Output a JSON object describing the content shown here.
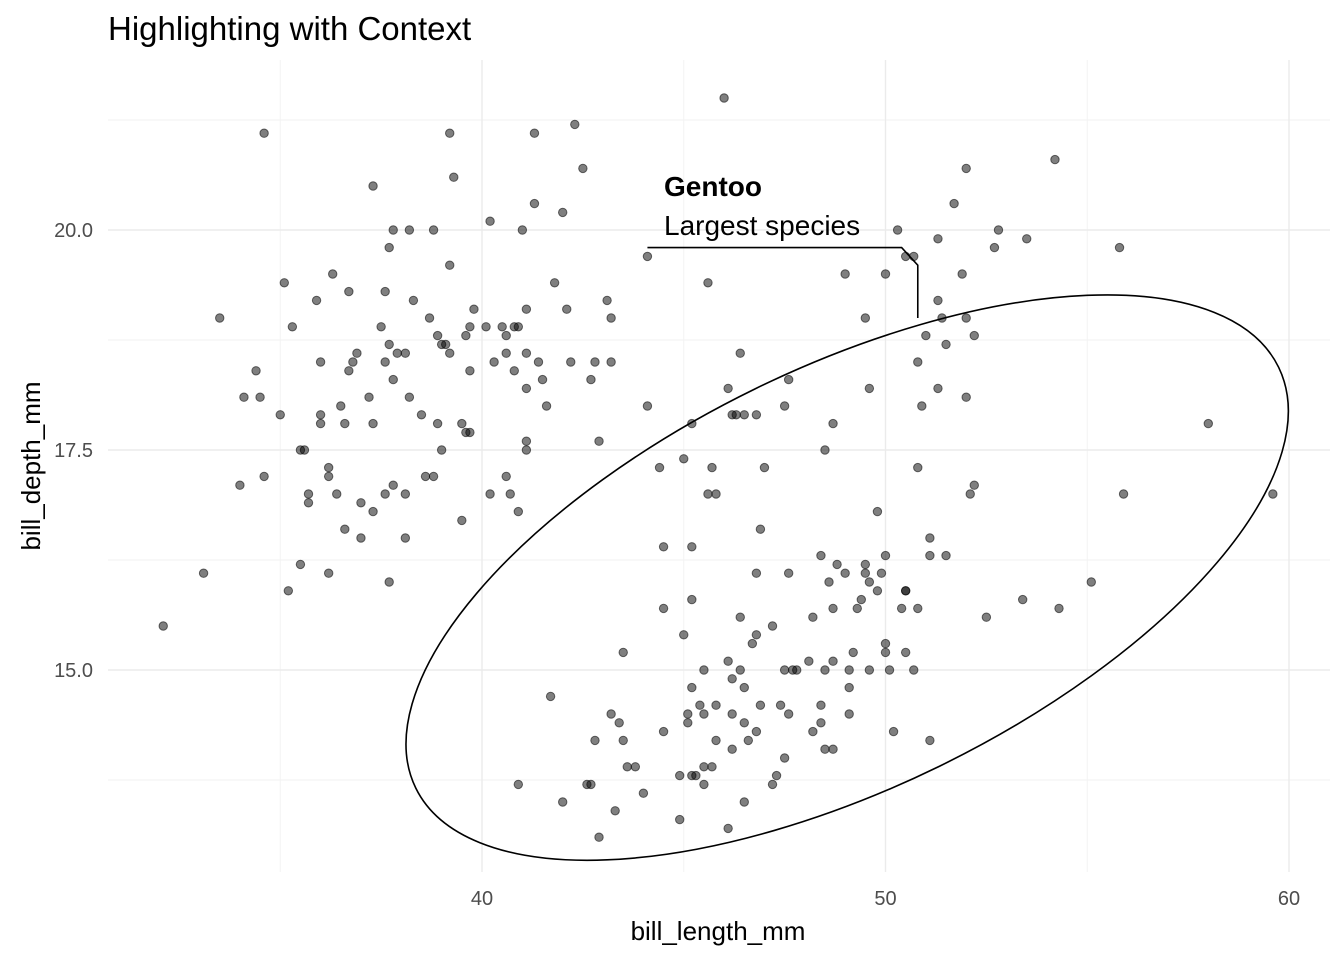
{
  "chart_data": {
    "type": "scatter",
    "title": "Highlighting with Context",
    "xlabel": "bill_length_mm",
    "ylabel": "bill_depth_mm",
    "xlim": [
      31.5,
      61.0
    ],
    "ylim": [
      12.9,
      21.6
    ],
    "x_ticks": [
      40,
      50,
      60
    ],
    "x_tick_labels": [
      "40",
      "50",
      "60"
    ],
    "y_ticks": [
      15.0,
      17.5,
      20.0
    ],
    "y_tick_labels": [
      "15.0",
      "17.5",
      "20.0"
    ],
    "grid": true,
    "annotation": {
      "title": "Gentoo",
      "description": "Largest species",
      "ellipse": {
        "center": [
          47.5,
          16.0
        ],
        "x_extent": [
          37.5,
          60.6
        ],
        "y_extent": [
          13.2,
          18.9
        ]
      },
      "line_points": [
        [
          44.1,
          19.8
        ],
        [
          50.4,
          19.8
        ],
        [
          50.8,
          19.6
        ],
        [
          50.8,
          19.0
        ]
      ]
    },
    "points": [
      [
        32.1,
        15.5
      ],
      [
        33.1,
        16.1
      ],
      [
        33.5,
        19.0
      ],
      [
        34.0,
        17.1
      ],
      [
        34.1,
        18.1
      ],
      [
        34.4,
        18.4
      ],
      [
        34.5,
        18.1
      ],
      [
        34.6,
        21.1
      ],
      [
        34.6,
        17.2
      ],
      [
        35.0,
        17.9
      ],
      [
        35.1,
        19.4
      ],
      [
        35.2,
        15.9
      ],
      [
        35.3,
        18.9
      ],
      [
        35.5,
        16.2
      ],
      [
        35.5,
        17.5
      ],
      [
        35.6,
        17.5
      ],
      [
        35.7,
        16.9
      ],
      [
        35.7,
        17.0
      ],
      [
        35.9,
        19.2
      ],
      [
        36.0,
        18.5
      ],
      [
        36.0,
        17.8
      ],
      [
        36.0,
        17.9
      ],
      [
        36.2,
        16.1
      ],
      [
        36.2,
        17.3
      ],
      [
        36.2,
        17.2
      ],
      [
        36.3,
        19.5
      ],
      [
        36.4,
        17.0
      ],
      [
        36.5,
        18.0
      ],
      [
        36.6,
        16.6
      ],
      [
        36.6,
        17.8
      ],
      [
        36.7,
        18.4
      ],
      [
        36.7,
        19.3
      ],
      [
        36.8,
        18.5
      ],
      [
        36.9,
        18.6
      ],
      [
        37.0,
        16.9
      ],
      [
        37.0,
        16.5
      ],
      [
        37.2,
        18.1
      ],
      [
        37.3,
        20.5
      ],
      [
        37.3,
        16.8
      ],
      [
        37.3,
        17.8
      ],
      [
        37.5,
        18.9
      ],
      [
        37.6,
        18.5
      ],
      [
        37.6,
        17.0
      ],
      [
        37.6,
        19.3
      ],
      [
        37.7,
        16.0
      ],
      [
        37.7,
        18.7
      ],
      [
        37.7,
        19.8
      ],
      [
        37.8,
        17.1
      ],
      [
        37.8,
        18.3
      ],
      [
        37.8,
        20.0
      ],
      [
        37.9,
        18.6
      ],
      [
        38.1,
        18.6
      ],
      [
        38.1,
        17.0
      ],
      [
        38.1,
        16.5
      ],
      [
        38.2,
        18.1
      ],
      [
        38.2,
        20.0
      ],
      [
        38.3,
        19.2
      ],
      [
        38.5,
        17.9
      ],
      [
        38.6,
        17.2
      ],
      [
        38.7,
        19.0
      ],
      [
        38.8,
        17.2
      ],
      [
        38.8,
        20.0
      ],
      [
        38.9,
        17.8
      ],
      [
        38.9,
        18.8
      ],
      [
        39.0,
        17.5
      ],
      [
        39.0,
        18.7
      ],
      [
        39.1,
        18.7
      ],
      [
        39.2,
        18.6
      ],
      [
        39.2,
        19.6
      ],
      [
        39.2,
        21.1
      ],
      [
        39.3,
        20.6
      ],
      [
        39.5,
        16.7
      ],
      [
        39.5,
        17.8
      ],
      [
        39.6,
        17.7
      ],
      [
        39.6,
        18.8
      ],
      [
        39.7,
        17.7
      ],
      [
        39.7,
        18.4
      ],
      [
        39.7,
        18.9
      ],
      [
        39.8,
        19.1
      ],
      [
        40.1,
        18.9
      ],
      [
        40.2,
        17.0
      ],
      [
        40.2,
        20.1
      ],
      [
        40.3,
        18.5
      ],
      [
        40.5,
        18.9
      ],
      [
        40.6,
        18.8
      ],
      [
        40.6,
        17.2
      ],
      [
        40.6,
        18.6
      ],
      [
        40.7,
        17.0
      ],
      [
        40.8,
        18.4
      ],
      [
        40.8,
        18.9
      ],
      [
        40.9,
        18.9
      ],
      [
        40.9,
        16.8
      ],
      [
        41.0,
        20.0
      ],
      [
        41.1,
        18.2
      ],
      [
        41.1,
        17.5
      ],
      [
        41.1,
        17.6
      ],
      [
        41.1,
        18.6
      ],
      [
        41.1,
        19.1
      ],
      [
        41.3,
        21.1
      ],
      [
        41.3,
        20.3
      ],
      [
        41.4,
        18.5
      ],
      [
        41.5,
        18.3
      ],
      [
        41.6,
        18.0
      ],
      [
        41.8,
        19.4
      ],
      [
        42.0,
        20.2
      ],
      [
        42.1,
        19.1
      ],
      [
        42.2,
        18.5
      ],
      [
        42.3,
        21.2
      ],
      [
        42.5,
        20.7
      ],
      [
        42.7,
        18.3
      ],
      [
        42.8,
        18.5
      ],
      [
        42.9,
        17.6
      ],
      [
        43.1,
        19.2
      ],
      [
        43.2,
        18.5
      ],
      [
        43.2,
        19.0
      ],
      [
        44.1,
        18.0
      ],
      [
        44.1,
        19.7
      ],
      [
        45.6,
        19.4
      ],
      [
        45.2,
        17.8
      ],
      [
        46.0,
        21.5
      ],
      [
        46.1,
        18.2
      ],
      [
        46.4,
        18.6
      ],
      [
        46.9,
        16.6
      ],
      [
        47.6,
        18.3
      ],
      [
        48.5,
        17.5
      ],
      [
        49.0,
        19.5
      ],
      [
        49.5,
        19.0
      ],
      [
        49.6,
        18.2
      ],
      [
        50.0,
        19.5
      ],
      [
        50.3,
        20.0
      ],
      [
        50.5,
        19.7
      ],
      [
        50.7,
        19.7
      ],
      [
        50.8,
        18.5
      ],
      [
        51.0,
        18.8
      ],
      [
        51.3,
        18.2
      ],
      [
        51.3,
        19.2
      ],
      [
        51.3,
        19.9
      ],
      [
        51.4,
        19.0
      ],
      [
        51.5,
        18.7
      ],
      [
        51.7,
        20.3
      ],
      [
        51.9,
        19.5
      ],
      [
        52.0,
        18.1
      ],
      [
        52.0,
        20.7
      ],
      [
        52.0,
        19.0
      ],
      [
        52.2,
        18.8
      ],
      [
        52.7,
        19.8
      ],
      [
        52.8,
        20.0
      ],
      [
        53.5,
        19.9
      ],
      [
        54.2,
        20.8
      ],
      [
        55.8,
        19.8
      ],
      [
        40.9,
        13.7
      ],
      [
        41.7,
        14.7
      ],
      [
        42.0,
        13.5
      ],
      [
        42.6,
        13.7
      ],
      [
        42.7,
        13.7
      ],
      [
        42.8,
        14.2
      ],
      [
        42.9,
        13.1
      ],
      [
        43.2,
        14.5
      ],
      [
        43.3,
        13.4
      ],
      [
        43.4,
        14.4
      ],
      [
        43.5,
        14.2
      ],
      [
        43.5,
        15.2
      ],
      [
        43.6,
        13.9
      ],
      [
        43.8,
        13.9
      ],
      [
        44.0,
        13.6
      ],
      [
        44.4,
        17.3
      ],
      [
        44.5,
        14.3
      ],
      [
        44.5,
        15.7
      ],
      [
        44.9,
        13.3
      ],
      [
        44.9,
        13.8
      ],
      [
        45.0,
        15.4
      ],
      [
        45.1,
        14.5
      ],
      [
        45.1,
        14.4
      ],
      [
        45.2,
        13.8
      ],
      [
        45.2,
        14.8
      ],
      [
        45.2,
        15.8
      ],
      [
        45.2,
        16.4
      ],
      [
        45.3,
        13.8
      ],
      [
        45.4,
        14.6
      ],
      [
        45.5,
        13.7
      ],
      [
        45.5,
        13.9
      ],
      [
        45.5,
        14.5
      ],
      [
        45.5,
        15.0
      ],
      [
        45.7,
        13.9
      ],
      [
        45.8,
        14.2
      ],
      [
        45.8,
        14.6
      ],
      [
        46.1,
        13.2
      ],
      [
        46.1,
        15.1
      ],
      [
        46.2,
        14.1
      ],
      [
        46.2,
        14.5
      ],
      [
        46.2,
        14.9
      ],
      [
        46.4,
        15.0
      ],
      [
        46.4,
        15.6
      ],
      [
        46.5,
        13.5
      ],
      [
        46.5,
        14.4
      ],
      [
        46.5,
        14.8
      ],
      [
        46.6,
        14.2
      ],
      [
        46.7,
        15.3
      ],
      [
        46.8,
        14.3
      ],
      [
        46.8,
        15.4
      ],
      [
        46.8,
        16.1
      ],
      [
        46.9,
        14.6
      ],
      [
        47.2,
        13.7
      ],
      [
        47.2,
        15.5
      ],
      [
        47.3,
        13.8
      ],
      [
        47.4,
        14.6
      ],
      [
        47.5,
        14.0
      ],
      [
        47.5,
        15.0
      ],
      [
        47.6,
        14.5
      ],
      [
        47.7,
        15.0
      ],
      [
        47.8,
        15.0
      ],
      [
        48.1,
        15.1
      ],
      [
        48.2,
        14.3
      ],
      [
        48.2,
        15.6
      ],
      [
        48.4,
        14.4
      ],
      [
        48.4,
        14.6
      ],
      [
        48.4,
        16.3
      ],
      [
        48.5,
        14.1
      ],
      [
        48.5,
        15.0
      ],
      [
        48.6,
        16.0
      ],
      [
        48.7,
        14.1
      ],
      [
        48.7,
        15.1
      ],
      [
        48.7,
        15.7
      ],
      [
        48.8,
        16.2
      ],
      [
        49.0,
        16.1
      ],
      [
        49.1,
        14.5
      ],
      [
        49.1,
        14.8
      ],
      [
        49.1,
        15.0
      ],
      [
        49.2,
        15.2
      ],
      [
        49.3,
        15.7
      ],
      [
        49.4,
        15.8
      ],
      [
        49.5,
        16.1
      ],
      [
        49.5,
        16.2
      ],
      [
        49.6,
        15.0
      ],
      [
        49.6,
        16.0
      ],
      [
        49.8,
        15.9
      ],
      [
        49.8,
        16.8
      ],
      [
        49.9,
        16.1
      ],
      [
        50.0,
        15.2
      ],
      [
        50.0,
        15.3
      ],
      [
        50.0,
        16.3
      ],
      [
        50.1,
        15.0
      ],
      [
        50.2,
        14.3
      ],
      [
        50.4,
        15.7
      ],
      [
        50.5,
        15.2
      ],
      [
        50.5,
        15.9
      ],
      [
        50.5,
        15.9
      ],
      [
        50.7,
        15.0
      ],
      [
        50.8,
        15.7
      ],
      [
        50.8,
        17.3
      ],
      [
        51.1,
        14.2
      ],
      [
        51.1,
        16.3
      ],
      [
        51.1,
        16.5
      ],
      [
        51.5,
        16.3
      ],
      [
        52.1,
        17.0
      ],
      [
        52.2,
        17.1
      ],
      [
        52.5,
        15.6
      ],
      [
        53.4,
        15.8
      ],
      [
        54.3,
        15.7
      ],
      [
        55.1,
        16.0
      ],
      [
        55.9,
        17.0
      ],
      [
        58.0,
        17.8
      ],
      [
        59.6,
        17.0
      ],
      [
        46.2,
        17.9
      ],
      [
        46.8,
        17.9
      ],
      [
        46.3,
        17.9
      ],
      [
        45.8,
        17.0
      ],
      [
        47.0,
        17.3
      ],
      [
        45.6,
        17.0
      ],
      [
        45.7,
        17.3
      ],
      [
        46.5,
        17.9
      ],
      [
        47.6,
        16.1
      ],
      [
        48.7,
        17.8
      ],
      [
        50.9,
        18.0
      ],
      [
        47.5,
        18.0
      ],
      [
        44.5,
        16.4
      ],
      [
        45.0,
        17.4
      ]
    ]
  }
}
